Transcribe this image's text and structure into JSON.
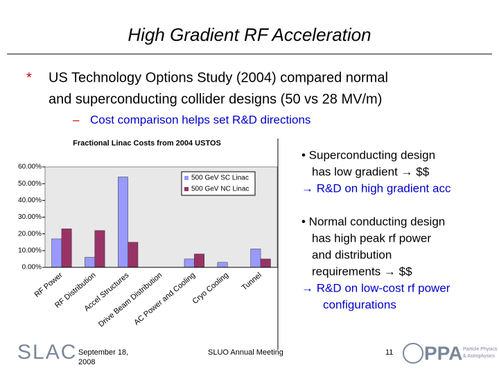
{
  "header": {
    "title": "High Gradient RF Acceleration"
  },
  "bullets": [
    {
      "marker": "*",
      "lines": [
        "US Technology Options Study (2004) compared normal",
        "and superconducting collider designs (50 vs 28 MV/m)"
      ]
    },
    {
      "marker": "–",
      "lines": [
        "Cost comparison helps set R&D directions"
      ]
    }
  ],
  "side_notes": [
    {
      "lines": [
        "• Superconducting design",
        "has low gradient → $$",
        "→ R&D on high gradient acc"
      ]
    },
    {
      "lines": [
        "• Normal conducting design",
        "has high peak rf power",
        "and distribution",
        "requirements → $$",
        "→ R&D on low-cost rf power",
        "configurations"
      ]
    }
  ],
  "footer": {
    "logo": "SLAC",
    "date": [
      "September 18,",
      "2008"
    ],
    "meeting": "SLUO Annual Meeting",
    "page": "11",
    "partner_logo": "PPA",
    "partner_text": [
      "Particle Physics",
      "& Astrophysics"
    ]
  },
  "chart_data": {
    "type": "bar",
    "title": "Fractional Linac Costs from 2004 USTOS",
    "categories": [
      "RF Power",
      "RF Distribution",
      "Accel Structures",
      "Drive Beam Distribution",
      "AC Power and Cooling",
      "Cryo Cooling",
      "Tunnel"
    ],
    "series": [
      {
        "name": "500 GeV SC Linac",
        "color": "#9999ff",
        "values": [
          17,
          6,
          54,
          0,
          5,
          3,
          11
        ]
      },
      {
        "name": "500 GeV NC Linac",
        "color": "#993366",
        "values": [
          23,
          22,
          15,
          0,
          8,
          0,
          5
        ]
      }
    ],
    "ylim": [
      0,
      60
    ],
    "yticks": [
      {
        "value": 0,
        "label": "0.00%"
      },
      {
        "value": 10,
        "label": "10.00%"
      },
      {
        "value": 20,
        "label": "20.00%"
      },
      {
        "value": 30,
        "label": "30.00%"
      },
      {
        "value": 40,
        "label": "40.00%"
      },
      {
        "value": 50,
        "label": "50.00%"
      },
      {
        "value": 60,
        "label": "60.00%"
      }
    ],
    "legend": "upper right"
  }
}
